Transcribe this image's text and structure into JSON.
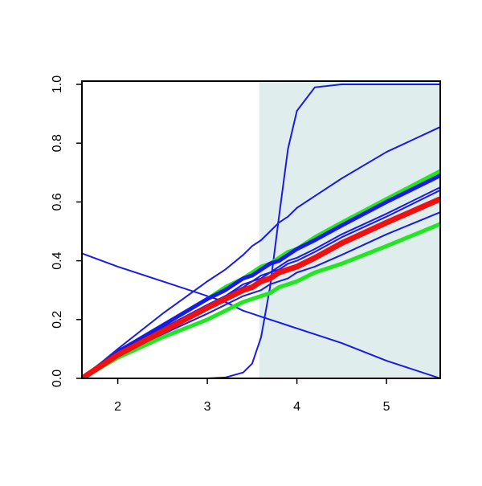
{
  "chart_data": {
    "type": "line",
    "x": [
      1.6,
      2,
      2.5,
      3,
      3.2,
      3.4,
      3.5,
      3.6,
      3.7,
      3.8,
      3.9,
      4.0,
      4.2,
      4.5,
      5,
      5.6
    ],
    "shade": {
      "xlim": [
        3.58,
        5.6
      ],
      "color": "#e0eded"
    },
    "series": [
      {
        "color": "#1a1ae6",
        "linewidth": 2,
        "values": [
          0,
          0.1,
          0.22,
          0.33,
          0.37,
          0.42,
          0.45,
          0.47,
          0.5,
          0.53,
          0.55,
          0.58,
          0.62,
          0.68,
          0.77,
          0.855
        ]
      },
      {
        "color": "#1a1ae6",
        "linewidth": 2,
        "values": [
          0.425,
          0.38,
          0.33,
          0.28,
          0.26,
          0.23,
          0.22,
          0.21,
          0.2,
          0.19,
          0.18,
          0.17,
          0.15,
          0.12,
          0.06,
          0
        ]
      },
      {
        "color": "#1a1ae6",
        "linewidth": 2,
        "values": [
          0,
          0,
          0,
          0,
          0.003,
          0.02,
          0.05,
          0.14,
          0.31,
          0.55,
          0.78,
          0.91,
          0.99,
          1,
          1,
          1
        ]
      },
      {
        "color": "#1a1ae6",
        "linewidth": 2,
        "values": [
          0,
          0.08,
          0.17,
          0.25,
          0.28,
          0.32,
          0.33,
          0.35,
          0.36,
          0.38,
          0.4,
          0.41,
          0.44,
          0.49,
          0.56,
          0.65
        ]
      },
      {
        "color": "#1a1ae6",
        "linewidth": 2,
        "values": [
          0,
          0.08,
          0.17,
          0.25,
          0.28,
          0.31,
          0.33,
          0.34,
          0.36,
          0.37,
          0.39,
          0.4,
          0.43,
          0.48,
          0.55,
          0.64
        ]
      },
      {
        "color": "#1a1ae6",
        "linewidth": 2,
        "values": [
          0,
          0.07,
          0.15,
          0.22,
          0.25,
          0.28,
          0.29,
          0.3,
          0.32,
          0.33,
          0.34,
          0.36,
          0.38,
          0.42,
          0.49,
          0.565
        ]
      },
      {
        "color": "#22e622",
        "linewidth": 5,
        "values": [
          0,
          0.09,
          0.18,
          0.27,
          0.31,
          0.34,
          0.36,
          0.38,
          0.39,
          0.41,
          0.43,
          0.44,
          0.48,
          0.53,
          0.61,
          0.705
        ]
      },
      {
        "color": "#22e622",
        "linewidth": 5,
        "values": [
          0,
          0.07,
          0.14,
          0.2,
          0.23,
          0.26,
          0.27,
          0.28,
          0.29,
          0.31,
          0.32,
          0.33,
          0.36,
          0.39,
          0.45,
          0.525
        ]
      },
      {
        "color": "#1a1ae6",
        "linewidth": 5,
        "values": [
          0,
          0.09,
          0.18,
          0.27,
          0.3,
          0.34,
          0.35,
          0.37,
          0.39,
          0.4,
          0.42,
          0.44,
          0.47,
          0.52,
          0.6,
          0.69
        ]
      },
      {
        "color": "#f01010",
        "linewidth": 7,
        "values": [
          0,
          0.08,
          0.16,
          0.24,
          0.27,
          0.3,
          0.31,
          0.33,
          0.34,
          0.36,
          0.37,
          0.38,
          0.41,
          0.46,
          0.53,
          0.61
        ]
      }
    ],
    "xlim": [
      1.6,
      5.6
    ],
    "ylim": [
      0,
      1.011
    ],
    "xticks": [
      2,
      3,
      4,
      5
    ],
    "yticks": [
      {
        "value": 0,
        "label": "0.0"
      },
      {
        "value": 0.2,
        "label": "0.2"
      },
      {
        "value": 0.4,
        "label": "0.4"
      },
      {
        "value": 0.6,
        "label": "0.6"
      },
      {
        "value": 0.8,
        "label": "0.8"
      },
      {
        "value": 1,
        "label": "1.0"
      }
    ]
  }
}
